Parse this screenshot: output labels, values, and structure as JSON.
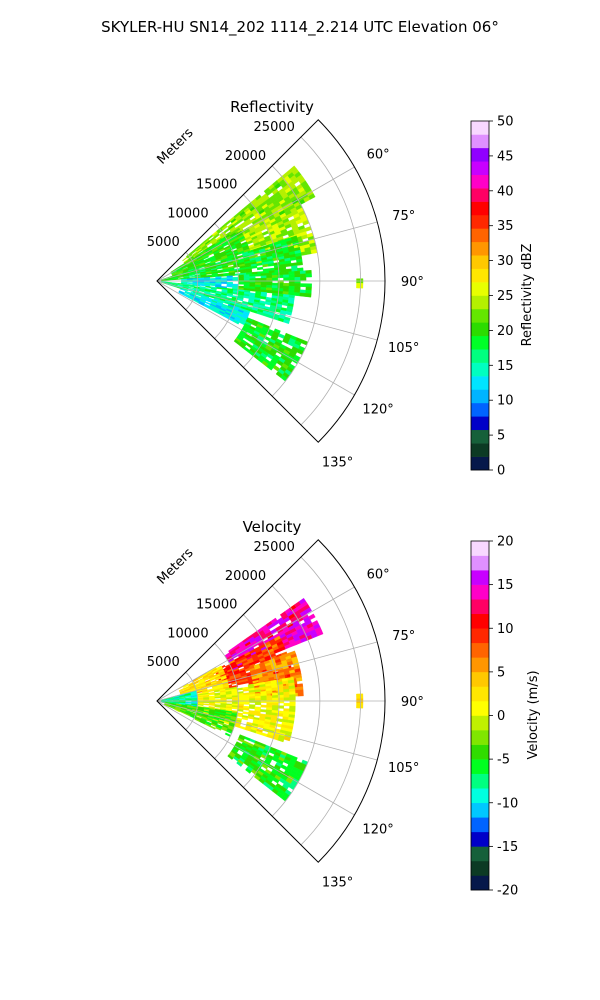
{
  "figure": {
    "suptitle": "SKYLER-HU  SN14_202  1114_2.214 UTC Elevation 06°"
  },
  "chart_data": [
    {
      "type": "heatmap",
      "projection": "polar-sector",
      "title": "Reflectivity",
      "range_label": "Meters",
      "range_ticks": [
        5000,
        10000,
        15000,
        20000,
        25000
      ],
      "rmax": 28000,
      "azimuth_range_deg": [
        45,
        135
      ],
      "azimuth_ticks": [
        "60°",
        "75°",
        "90°",
        "105°",
        "120°",
        "135°"
      ],
      "azimuth_tick_values": [
        60,
        75,
        90,
        105,
        120,
        135
      ],
      "grid": true,
      "colorbar": {
        "label": "Reflectivity dBZ",
        "min": 0,
        "max": 50,
        "ticks": [
          0,
          5,
          10,
          15,
          20,
          25,
          30,
          35,
          40,
          45,
          50
        ],
        "colors": [
          "#06184a",
          "#0c3a24",
          "#16603a",
          "#0000c8",
          "#0064ff",
          "#00b4ff",
          "#00e4ff",
          "#00ffc0",
          "#00ff80",
          "#00ff28",
          "#2cdc00",
          "#64e600",
          "#b4f000",
          "#e8ff00",
          "#ffe600",
          "#ffc800",
          "#ff9600",
          "#ff6400",
          "#ff2800",
          "#ff0000",
          "#ff0064",
          "#ff00c8",
          "#c800ff",
          "#9000ff",
          "#e090ff",
          "#f8d8ff"
        ]
      },
      "regions": [
        {
          "az": [
            50,
            62
          ],
          "r": [
            4000,
            22000
          ],
          "value": 23
        },
        {
          "az": [
            62,
            80
          ],
          "r": [
            12000,
            20000
          ],
          "value": 24
        },
        {
          "az": [
            57,
            72
          ],
          "r": [
            2000,
            12000
          ],
          "value": 20
        },
        {
          "az": [
            72,
            86
          ],
          "r": [
            500,
            18000
          ],
          "value": 19
        },
        {
          "az": [
            86,
            96
          ],
          "r": [
            3000,
            10000
          ],
          "value": 13
        },
        {
          "az": [
            86,
            96
          ],
          "r": [
            10000,
            19000
          ],
          "value": 19
        },
        {
          "az": [
            96,
            108
          ],
          "r": [
            500,
            17000
          ],
          "value": 16
        },
        {
          "az": [
            108,
            118
          ],
          "r": [
            3000,
            12000
          ],
          "value": 13
        },
        {
          "az": [
            112,
            128
          ],
          "r": [
            12000,
            20000
          ],
          "value": 19
        },
        {
          "az": [
            88,
            92
          ],
          "r": [
            24500,
            25300
          ],
          "value": 25
        }
      ]
    },
    {
      "type": "heatmap",
      "projection": "polar-sector",
      "title": "Velocity",
      "range_label": "Meters",
      "range_ticks": [
        5000,
        10000,
        15000,
        20000,
        25000
      ],
      "rmax": 28000,
      "azimuth_range_deg": [
        45,
        135
      ],
      "azimuth_ticks": [
        "60°",
        "75°",
        "90°",
        "105°",
        "120°",
        "135°"
      ],
      "azimuth_tick_values": [
        60,
        75,
        90,
        105,
        120,
        135
      ],
      "grid": true,
      "colorbar": {
        "label": "Velocity (m/s)",
        "min": -20,
        "max": 20,
        "ticks": [
          -20,
          -15,
          -10,
          -5,
          0,
          5,
          10,
          15,
          20
        ],
        "colors": [
          "#06184a",
          "#0c3a24",
          "#16603a",
          "#0000c8",
          "#0064ff",
          "#00c8ff",
          "#00ffe0",
          "#00ff80",
          "#00ff20",
          "#30dc00",
          "#80e600",
          "#c0f000",
          "#ffff00",
          "#ffe600",
          "#ffc800",
          "#ff9600",
          "#ff6400",
          "#ff2800",
          "#ff0000",
          "#ff0064",
          "#ff00c8",
          "#c800ff",
          "#e090ff",
          "#f8d8ff"
        ]
      },
      "regions": [
        {
          "az": [
            55,
            68
          ],
          "r": [
            10000,
            22000
          ],
          "value": 14
        },
        {
          "az": [
            62,
            80
          ],
          "r": [
            8000,
            17000
          ],
          "value": 9
        },
        {
          "az": [
            70,
            88
          ],
          "r": [
            12000,
            18000
          ],
          "value": 6
        },
        {
          "az": [
            60,
            80
          ],
          "r": [
            3000,
            9000
          ],
          "value": 3
        },
        {
          "az": [
            80,
            108
          ],
          "r": [
            5000,
            17000
          ],
          "value": 1
        },
        {
          "az": [
            75,
            105
          ],
          "r": [
            500,
            5000
          ],
          "value": -8
        },
        {
          "az": [
            98,
            116
          ],
          "r": [
            1000,
            10000
          ],
          "value": -4
        },
        {
          "az": [
            112,
            128
          ],
          "r": [
            11000,
            20000
          ],
          "value": -5
        },
        {
          "az": [
            88,
            92
          ],
          "r": [
            24500,
            25300
          ],
          "value": 2
        }
      ]
    }
  ]
}
